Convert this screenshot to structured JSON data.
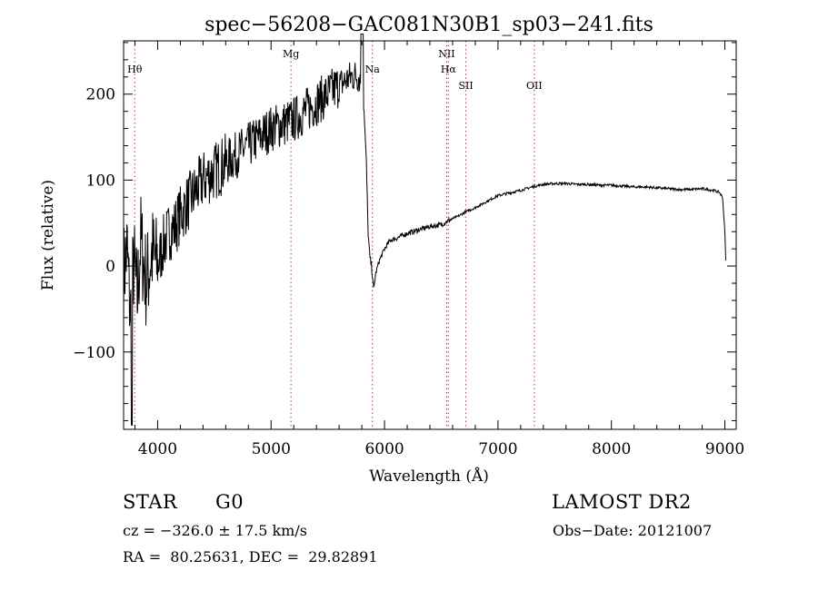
{
  "colors": {
    "line": "#000000",
    "marker": "#cc3333",
    "background": "#ffffff"
  },
  "chart_data": {
    "type": "line",
    "title": "spec−56208−GAC081N30B1_sp03−241.fits",
    "xlabel": "Wavelength (Å)",
    "ylabel": "Flux (relative)",
    "xlim": [
      3700,
      9100
    ],
    "ylim": [
      -190,
      262
    ],
    "x_ticks": [
      4000,
      5000,
      6000,
      7000,
      8000,
      9000
    ],
    "y_ticks": [
      -100,
      0,
      100,
      200
    ],
    "x_tick_labels": [
      "4000",
      "5000",
      "6000",
      "7000",
      "8000",
      "9000"
    ],
    "y_tick_labels": [
      "−100",
      "0",
      "100",
      "200"
    ],
    "grid": false,
    "line_markers": [
      {
        "label": "Hθ",
        "x": 3798,
        "label_level": "upper"
      },
      {
        "label": "Mg",
        "x": 5175,
        "label_level": "top"
      },
      {
        "label": "Na",
        "x": 5893,
        "label_level": "upper"
      },
      {
        "label": "NII",
        "x": 6548,
        "label_level": "top"
      },
      {
        "label": "Hα",
        "x": 6563,
        "label_level": "upper"
      },
      {
        "label": "SII",
        "x": 6717,
        "label_level": "lower"
      },
      {
        "label": "OII",
        "x": 7320,
        "label_level": "lower"
      }
    ],
    "series": [
      {
        "x": [
          3700,
          3730,
          3760,
          3790,
          3820,
          3850,
          3900,
          3950,
          4000,
          4050,
          4100,
          4150,
          4200,
          4300,
          4400,
          4500,
          4600,
          4700,
          4800,
          4900,
          5000,
          5100,
          5200,
          5300,
          5400,
          5500,
          5600,
          5650,
          5700,
          5750,
          5780,
          5800,
          5820,
          5840,
          5855,
          5870,
          5885,
          5895,
          5905,
          5920,
          5950,
          6000,
          6050,
          6100,
          6200,
          6300,
          6400,
          6500,
          6550,
          6600,
          6650,
          6700,
          6800,
          6900,
          7000,
          7100,
          7200,
          7300,
          7400,
          7500,
          7600,
          7700,
          7800,
          7900,
          8000,
          8100,
          8200,
          8300,
          8400,
          8500,
          8600,
          8700,
          8800,
          8900,
          8950,
          8980,
          9000,
          9010
        ],
        "y": [
          -10,
          20,
          -60,
          5,
          -40,
          30,
          -20,
          15,
          0,
          25,
          40,
          45,
          60,
          80,
          100,
          110,
          120,
          130,
          140,
          150,
          160,
          165,
          170,
          180,
          190,
          200,
          210,
          215,
          220,
          222,
          220,
          210,
          180,
          120,
          40,
          10,
          0,
          -12,
          -28,
          -10,
          5,
          20,
          30,
          32,
          38,
          42,
          46,
          48,
          52,
          55,
          58,
          62,
          68,
          75,
          82,
          85,
          88,
          92,
          95,
          96,
          96,
          95,
          95,
          94,
          94,
          93,
          92,
          92,
          91,
          90,
          89,
          89,
          90,
          88,
          86,
          80,
          40,
          0
        ]
      }
    ]
  },
  "info": {
    "object_class": "STAR",
    "subclass": "G0",
    "survey": "LAMOST DR2",
    "cz": "cz = −326.0 ± 17.5 km/s",
    "obs_date": "Obs−Date: 20121007",
    "coords": "RA =  80.25631, DEC =  29.82891"
  }
}
